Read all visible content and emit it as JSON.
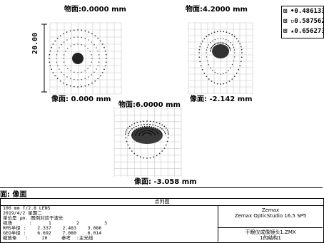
{
  "plots": [
    {
      "object_field": "物面:0.0000 mm",
      "image_height": "像面: 0.000 mm",
      "scale": "20.00"
    },
    {
      "object_field": "物面:4.2000 mm",
      "image_height": "像面: -2.142 mm"
    },
    {
      "object_field": "物面:6.0000 mm",
      "image_height": "像面: -3.058 mm"
    }
  ],
  "legend": {
    "items": [
      {
        "symbol": "⊠",
        "marker": "•",
        "value": "0.486133"
      },
      {
        "symbol": "⊠",
        "marker": "▫",
        "value": "0.587562"
      },
      {
        "symbol": "⊠",
        "marker": "▴",
        "value": "0.656273"
      }
    ]
  },
  "surface_label": "面: 像面",
  "footer": {
    "title": "点列图",
    "lens": "100 mm f/2.8  LENS",
    "date": "2019/4/2 星期二",
    "unit": "单位是 μm. 图例对应于波长",
    "field_row": "视场      :      1         2         3",
    "rms_row": "RMS半径 :    2.337    2.483    3.086",
    "geo_row": "GEO半径 :    6.692    7.080    6.014",
    "scale_row": "缩放条   :     20     参考  :主光线",
    "company": "Zemax",
    "software": "Zemax OpticStudio 16.5 SP5",
    "file": "干眼仪成像镜头1.ZMX",
    "config": "1的结构1"
  }
}
